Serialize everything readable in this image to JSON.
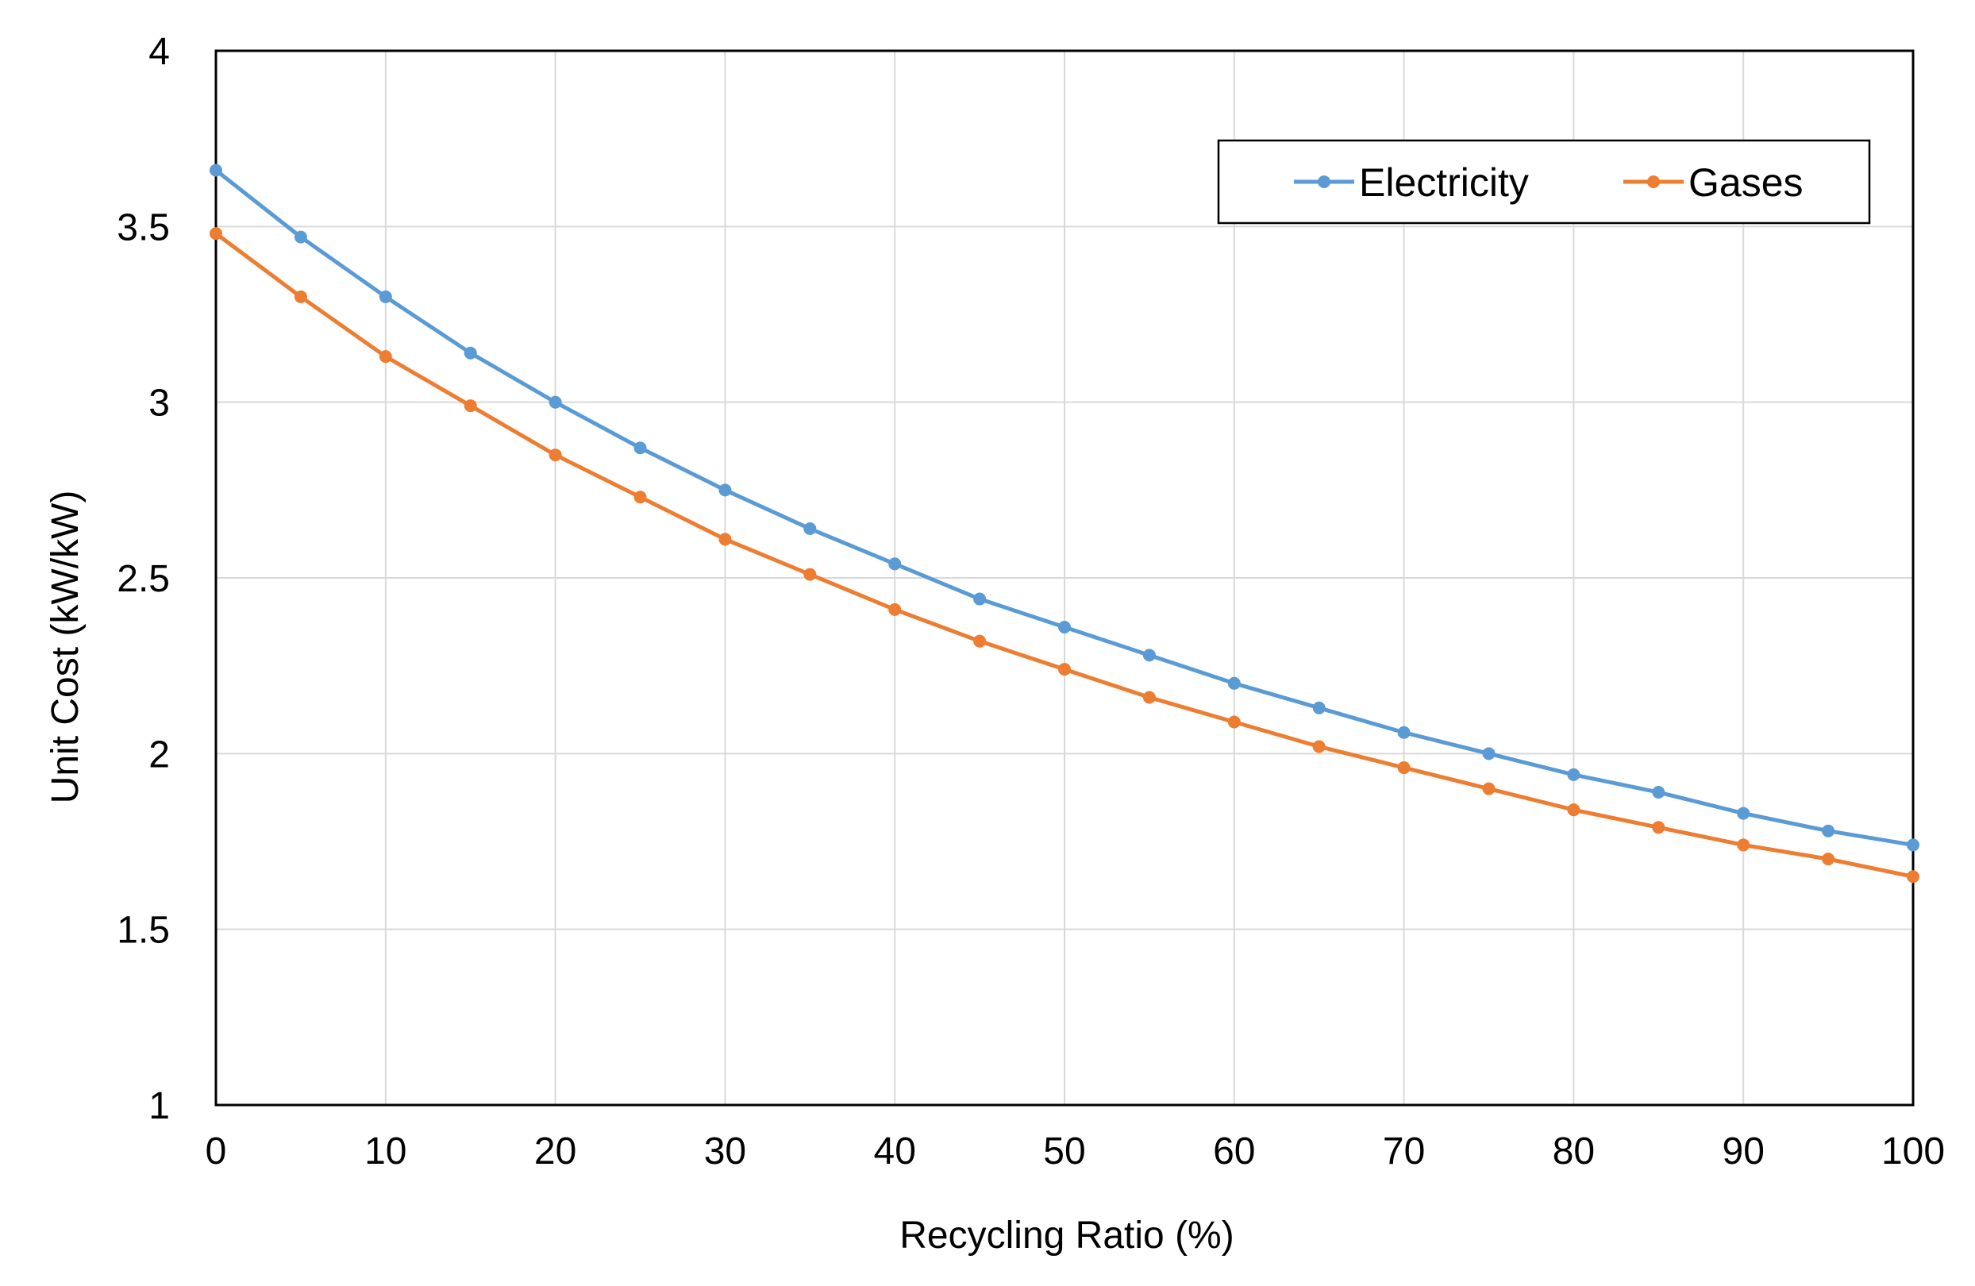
{
  "chart_data": {
    "type": "line",
    "title": "",
    "xlabel": "Recycling Ratio (%)",
    "ylabel": "Unit Cost (kW/kW)",
    "xlim": [
      0,
      100
    ],
    "ylim": [
      1,
      4
    ],
    "x_ticks": [
      "0",
      "10",
      "20",
      "30",
      "40",
      "50",
      "60",
      "70",
      "80",
      "90",
      "100"
    ],
    "y_ticks": [
      "1",
      "1.5",
      "2",
      "2.5",
      "3",
      "3.5",
      "4"
    ],
    "grid": true,
    "legend_position": "top-right",
    "x": [
      0,
      5,
      10,
      15,
      20,
      25,
      30,
      35,
      40,
      45,
      50,
      55,
      60,
      65,
      70,
      75,
      80,
      85,
      90,
      95,
      100
    ],
    "series": [
      {
        "name": "Electricity",
        "color": "#5B9BD5",
        "values": [
          3.66,
          3.47,
          3.3,
          3.14,
          3.0,
          2.87,
          2.75,
          2.64,
          2.54,
          2.44,
          2.36,
          2.28,
          2.2,
          2.13,
          2.06,
          2.0,
          1.94,
          1.89,
          1.83,
          1.78,
          1.74
        ]
      },
      {
        "name": "Gases",
        "color": "#ED7D31",
        "values": [
          3.48,
          3.3,
          3.13,
          2.99,
          2.85,
          2.73,
          2.61,
          2.51,
          2.41,
          2.32,
          2.24,
          2.16,
          2.09,
          2.02,
          1.96,
          1.9,
          1.84,
          1.79,
          1.74,
          1.7,
          1.65
        ]
      }
    ]
  }
}
